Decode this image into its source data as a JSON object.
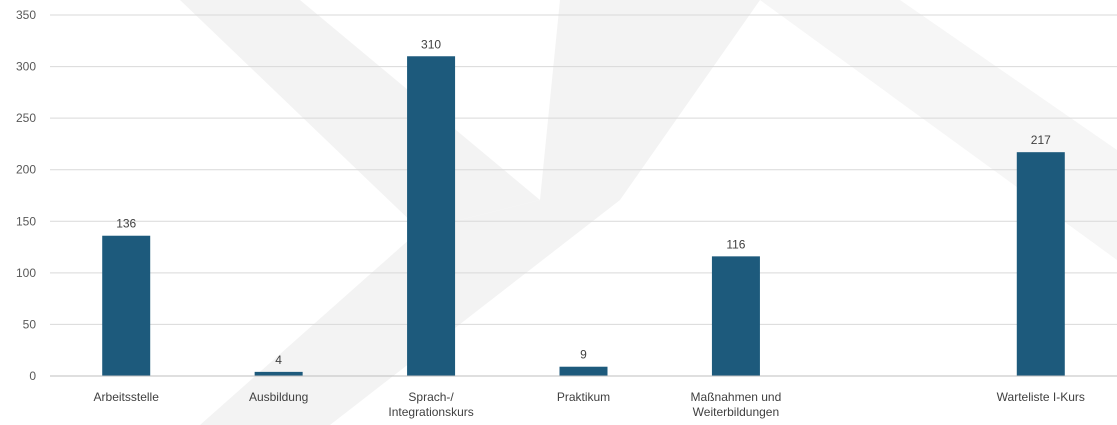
{
  "chart_data": {
    "type": "bar",
    "categories": [
      [
        "Arbeitsstelle"
      ],
      [
        "Ausbildung"
      ],
      [
        "Sprach-/",
        "Integrationskurs"
      ],
      [
        "Praktikum"
      ],
      [
        "Maßnahmen und",
        "Weiterbildungen"
      ],
      [
        ""
      ],
      [
        "Warteliste I-Kurs"
      ]
    ],
    "values": [
      136,
      4,
      310,
      9,
      116,
      null,
      217
    ],
    "data_labels": [
      "136",
      "4",
      "310",
      "9",
      "116",
      "",
      "217"
    ],
    "yticks": [
      0,
      50,
      100,
      150,
      200,
      250,
      300,
      350
    ],
    "ylim": [
      0,
      350
    ],
    "title": "",
    "xlabel": "",
    "ylabel": "",
    "grid": true,
    "legend": "none",
    "colors": {
      "bar": "#1d5a7c",
      "grid": "#d9d9d9",
      "axis": "#bfbfbf",
      "watermark": "#f2f2f2"
    }
  }
}
